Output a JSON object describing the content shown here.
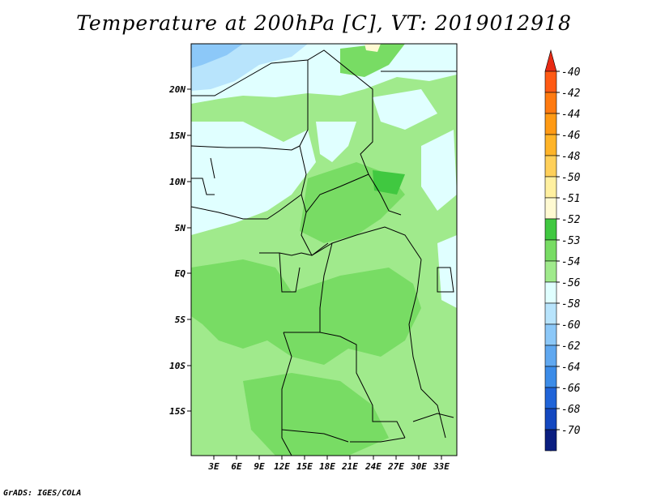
{
  "title": "Temperature at 200hPa [C], VT: 2019012918",
  "credit": "GrADS: IGES/COLA",
  "map": {
    "lat_labels": [
      "20N",
      "15N",
      "10N",
      "5N",
      "EQ",
      "5S",
      "10S",
      "15S"
    ],
    "lon_labels": [
      "3E",
      "6E",
      "9E",
      "12E",
      "15E",
      "18E",
      "21E",
      "24E",
      "27E",
      "30E",
      "33E"
    ]
  },
  "colorbar": {
    "labels": [
      "-40",
      "-42",
      "-44",
      "-46",
      "-48",
      "-50",
      "-51",
      "-52",
      "-53",
      "-54",
      "-56",
      "-58",
      "-60",
      "-62",
      "-64",
      "-66",
      "-68",
      "-70"
    ],
    "colors": [
      "#ff5a14",
      "#ff7a10",
      "#ff9a14",
      "#ffb428",
      "#ffd05a",
      "#fff0a0",
      "#fffad2",
      "#40c840",
      "#78dc64",
      "#a0ea8c",
      "#e0ffff",
      "#b8e4fc",
      "#8cc8f8",
      "#60a8f0",
      "#3c8ce8",
      "#2064d8",
      "#1448c0",
      "#0a1e80"
    ],
    "top_arrow_color": "#e82a14",
    "bottom_arrow_color": "#dcdcf0"
  }
}
